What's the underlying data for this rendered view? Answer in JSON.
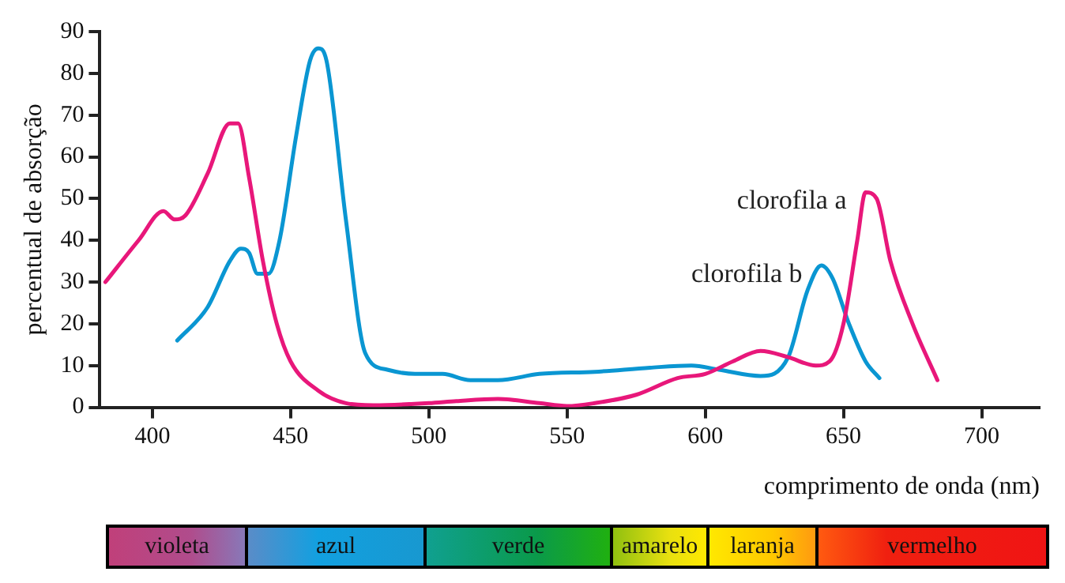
{
  "chart_data": {
    "type": "line",
    "xlabel": "comprimento de onda (nm)",
    "ylabel": "percentual de absorção",
    "xlim": [
      381,
      721
    ],
    "xticks": [
      400,
      450,
      500,
      550,
      600,
      650,
      700
    ],
    "ylim": [
      0,
      90
    ],
    "yticks": [
      0,
      10,
      20,
      30,
      40,
      50,
      60,
      70,
      80,
      90
    ],
    "grid": false,
    "legend": false,
    "marker": "none",
    "line_style": "solid",
    "series": [
      {
        "name": "clorofila a",
        "color": "#e8177a",
        "x": [
          383,
          395,
          404,
          408,
          412,
          420,
          428,
          431,
          435,
          440,
          445,
          450,
          460,
          470,
          480,
          500,
          510,
          525,
          540,
          550,
          560,
          575,
          590,
          600,
          610,
          620,
          630,
          640,
          645,
          650,
          655,
          658,
          662,
          667,
          675,
          684
        ],
        "values": [
          30,
          40,
          47,
          45,
          46,
          56,
          68,
          68,
          55,
          35,
          20,
          11,
          4,
          1,
          0.5,
          1,
          1.5,
          2,
          1,
          0.3,
          1,
          3,
          7,
          8,
          11,
          13.5,
          12,
          10,
          11,
          20,
          40,
          51.5,
          50,
          35,
          20,
          6.5
        ]
      },
      {
        "name": "clorofila b",
        "color": "#0a96d2",
        "x": [
          409,
          420,
          428,
          432,
          435,
          438,
          442,
          446,
          452,
          457,
          460,
          463,
          470,
          477,
          485,
          495,
          505,
          515,
          525,
          540,
          560,
          580,
          595,
          605,
          620,
          630,
          637,
          642,
          646,
          652,
          658,
          663
        ],
        "values": [
          16,
          24,
          35,
          38,
          37,
          32,
          32,
          40,
          65,
          83,
          86,
          83,
          45,
          13,
          9,
          8,
          8,
          6.5,
          6.5,
          8,
          8.5,
          9.5,
          10,
          9,
          7.5,
          12,
          28,
          34,
          31,
          20,
          11,
          7
        ]
      }
    ],
    "annotations": [
      "violeta",
      "azul",
      "verde",
      "amarelo",
      "laranja",
      "vermelho"
    ]
  }
}
